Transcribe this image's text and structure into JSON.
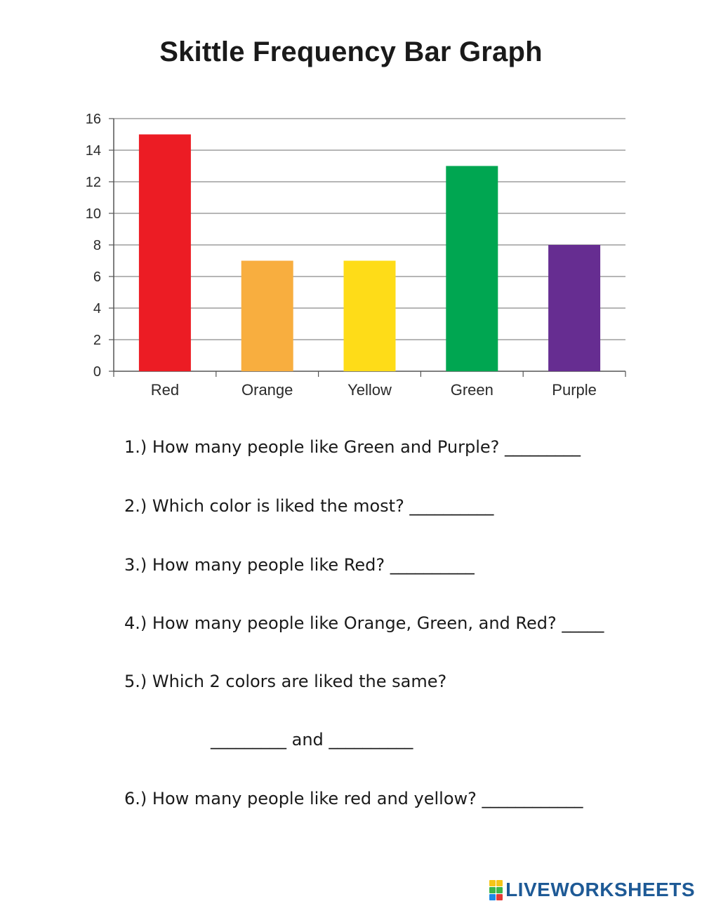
{
  "title": "Skittle Frequency Bar Graph",
  "chart_data": {
    "type": "bar",
    "categories": [
      "Red",
      "Orange",
      "Yellow",
      "Green",
      "Purple"
    ],
    "values": [
      15,
      7,
      7,
      13,
      8
    ],
    "colors": [
      "#ec1c24",
      "#f8ae3f",
      "#fedc18",
      "#00a651",
      "#662d91"
    ],
    "ylim": [
      0,
      16
    ],
    "yticks": [
      "0",
      "2",
      "4",
      "6",
      "8",
      "10",
      "12",
      "14",
      "16"
    ],
    "grid": true,
    "xlabel": "",
    "ylabel": ""
  },
  "questions": [
    "1.) How many people like Green and Purple? _________",
    "2.) Which color is liked the most? __________",
    "3.) How many people like Red? __________",
    "4.) How many people like Orange, Green, and Red? _____",
    "5.) Which 2 colors are liked the same?",
    "_________ and __________",
    "6.) How many people like red and yellow? ____________"
  ],
  "logo": {
    "text": "LIVEWORKSHEETS",
    "icon": "liveworksheets-logo-icon",
    "mark_letters": [
      "L",
      "I",
      "V",
      "E"
    ]
  }
}
